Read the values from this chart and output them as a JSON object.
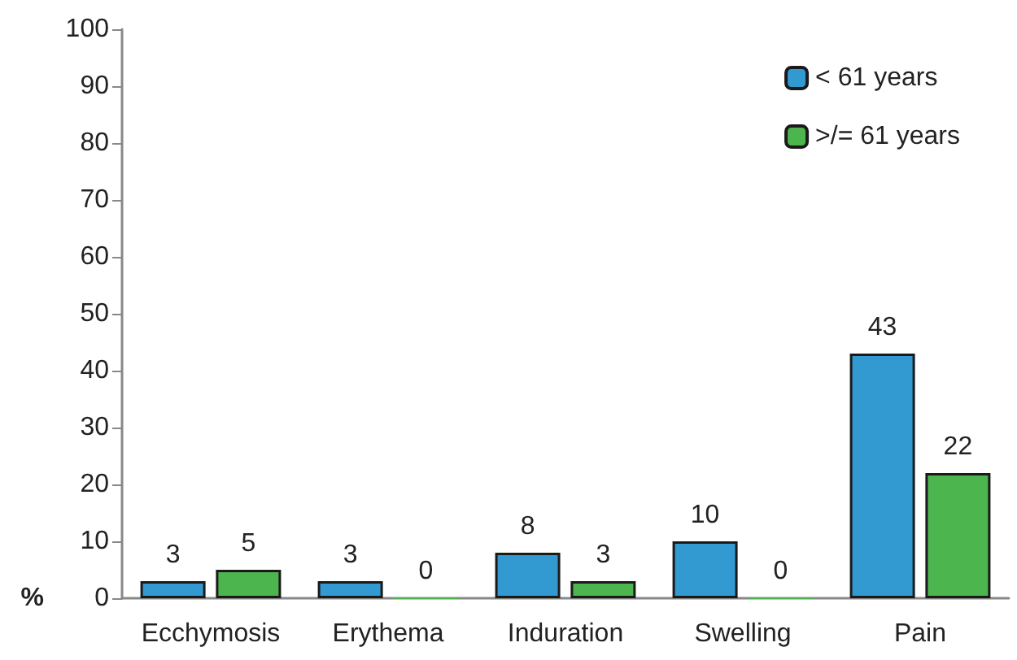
{
  "chart_data": {
    "type": "bar",
    "ylabel": "%",
    "categories": [
      "Ecchymosis",
      "Erythema",
      "Induration",
      "Swelling",
      "Pain"
    ],
    "series": [
      {
        "name": "< 61 years",
        "color": "#3399d1",
        "values": [
          3,
          3,
          8,
          10,
          43
        ]
      },
      {
        "name": ">/= 61 years",
        "color": "#4db54d",
        "values": [
          5,
          0,
          3,
          0,
          22
        ]
      }
    ],
    "ylim": [
      0,
      100
    ],
    "yticks": [
      0,
      10,
      20,
      30,
      40,
      50,
      60,
      70,
      80,
      90,
      100
    ],
    "grid": false,
    "legend": "top right",
    "data_labels": true
  }
}
